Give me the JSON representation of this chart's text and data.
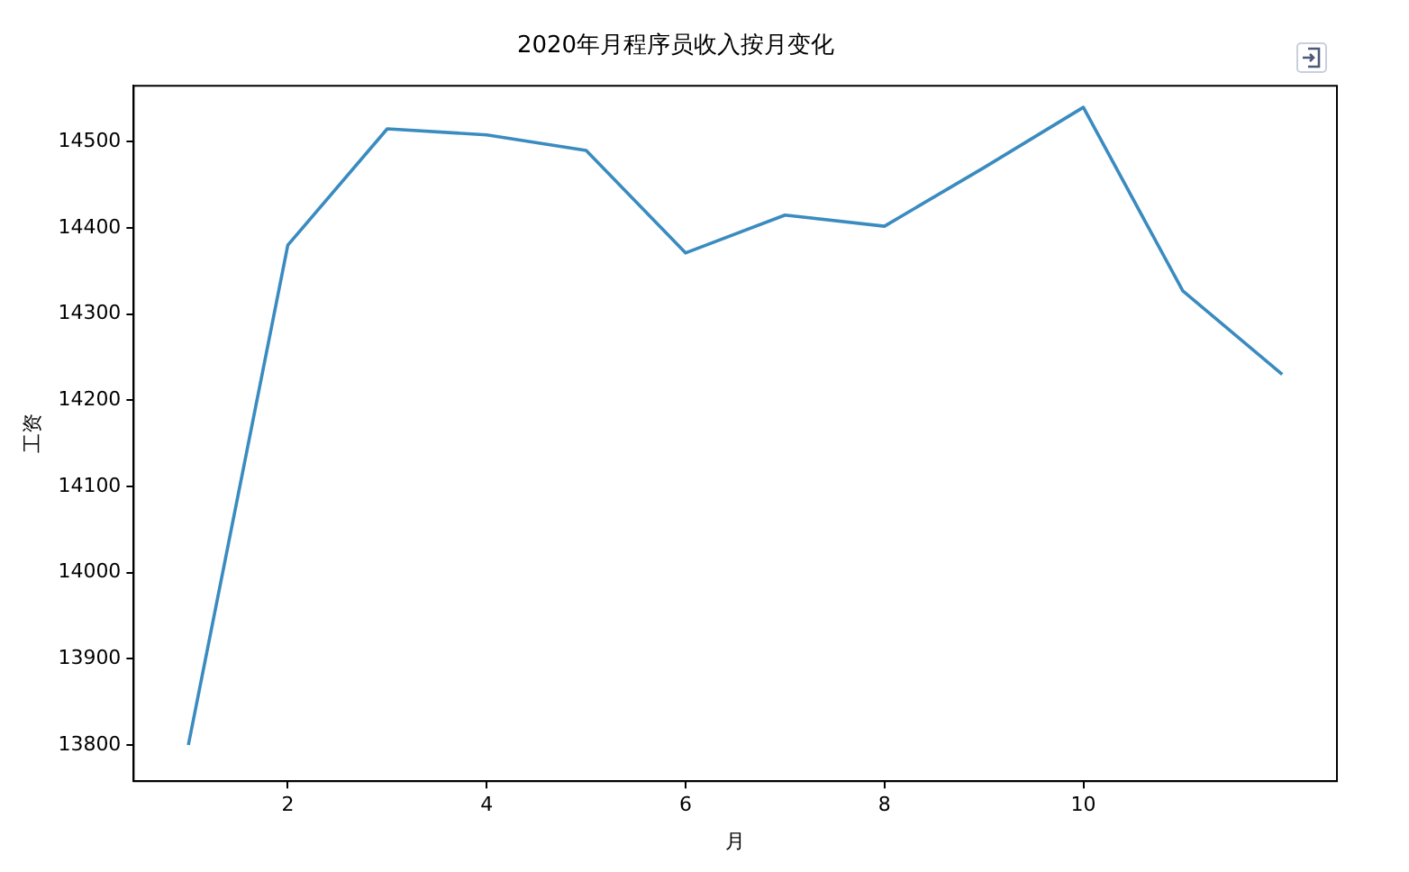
{
  "chart_data": {
    "type": "line",
    "title": "2020年月程序员收入按月变化",
    "xlabel": "月",
    "ylabel": "工资",
    "x": [
      1,
      2,
      3,
      4,
      5,
      6,
      7,
      8,
      9,
      10,
      11,
      12
    ],
    "series": [
      {
        "color": "#3a8bc0",
        "values": [
          13800,
          14380,
          14515,
          14508,
          14490,
          14371,
          14415,
          14402,
          14470,
          14540,
          14327,
          14230
        ]
      }
    ],
    "xlim": [
      0.45,
      12.55
    ],
    "xticks": [
      2,
      4,
      6,
      8,
      10
    ],
    "ylim": [
      13758,
      14565
    ],
    "yticks": [
      13800,
      13900,
      14000,
      14100,
      14200,
      14300,
      14400,
      14500
    ],
    "grid": false,
    "legend": false,
    "marker": "none",
    "line_style": "solid"
  }
}
